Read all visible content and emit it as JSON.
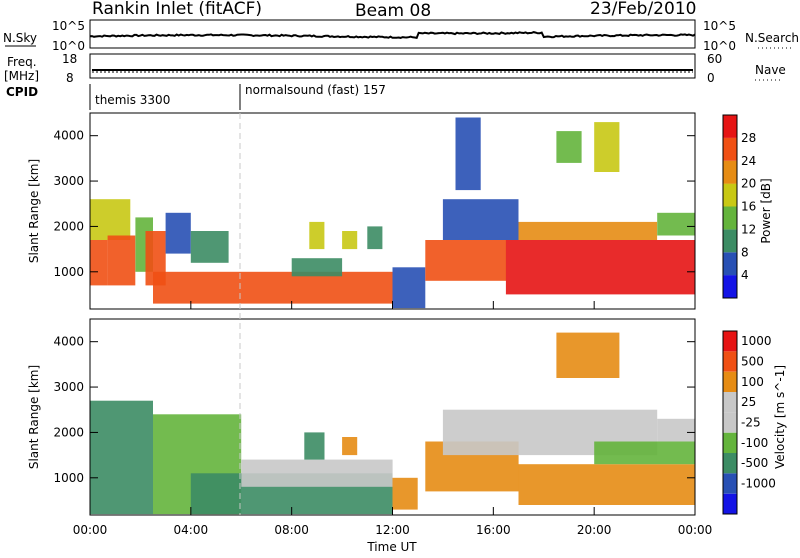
{
  "header": {
    "station": "Rankin Inlet (fitACF)",
    "beam": "Beam 08",
    "date": "23/Feb/2010"
  },
  "timeline": {
    "nsky_label": "N.Sky",
    "nsky_ticks": [
      "10^5",
      "10^0"
    ],
    "nsearch_label": "N.Search",
    "nsearch_ticks": [
      "10^5",
      "10^0"
    ],
    "freq_label": "Freq.",
    "freq_unit": "[MHz]",
    "freq_ticks": [
      "18",
      "8"
    ],
    "nave_label": "Nave",
    "nave_ticks": [
      "60",
      "0"
    ],
    "cpid_label": "CPID",
    "modes": [
      {
        "start": 0,
        "end": 6,
        "text": "themis 3300"
      },
      {
        "start": 6,
        "end": 24,
        "text": "normalsound (fast) 157"
      }
    ]
  },
  "colors": {
    "power": [
      "#1414e6",
      "#2850b4",
      "#3c8c64",
      "#64b43c",
      "#c8c814",
      "#e68c14",
      "#f05014",
      "#e61414"
    ],
    "velocity": [
      "#e61414",
      "#f05014",
      "#e68c14",
      "#c8c8c8",
      "#c8c8c8",
      "#64b43c",
      "#3c8c64",
      "#2850b4",
      "#1414e6"
    ]
  },
  "chart_data": [
    {
      "type": "heatmap",
      "name_key": "power",
      "xlabel": "",
      "ylabel": "Slant Range [km]",
      "xlim": [
        0,
        24
      ],
      "ylim": [
        180,
        4500
      ],
      "y_ticks": [
        "1000",
        "2000",
        "3000",
        "4000"
      ],
      "colorbar_label": "Power [dB]",
      "colorbar_ticks": [
        "4",
        "8",
        "12",
        "16",
        "20",
        "24",
        "28"
      ],
      "colorbar_range": [
        0,
        30
      ],
      "regions": [
        {
          "t0": 0.0,
          "t1": 0.7,
          "r0": 700,
          "r1": 1700,
          "level": 6
        },
        {
          "t0": 0.0,
          "t1": 1.6,
          "r0": 1700,
          "r1": 2600,
          "level": 4
        },
        {
          "t0": 0.7,
          "t1": 1.8,
          "r0": 700,
          "r1": 1800,
          "level": 6
        },
        {
          "t0": 1.8,
          "t1": 2.5,
          "r0": 1000,
          "r1": 2200,
          "level": 3
        },
        {
          "t0": 2.2,
          "t1": 3.0,
          "r0": 700,
          "r1": 1900,
          "level": 6
        },
        {
          "t0": 3.0,
          "t1": 4.0,
          "r0": 1400,
          "r1": 2300,
          "level": 1
        },
        {
          "t0": 4.0,
          "t1": 5.5,
          "r0": 1200,
          "r1": 1900,
          "level": 2
        },
        {
          "t0": 2.5,
          "t1": 12.0,
          "r0": 300,
          "r1": 1000,
          "level": 6
        },
        {
          "t0": 8.0,
          "t1": 10.0,
          "r0": 900,
          "r1": 1300,
          "level": 2
        },
        {
          "t0": 8.7,
          "t1": 9.3,
          "r0": 1500,
          "r1": 2100,
          "level": 4
        },
        {
          "t0": 10.0,
          "t1": 10.6,
          "r0": 1500,
          "r1": 1900,
          "level": 4
        },
        {
          "t0": 11.0,
          "t1": 11.6,
          "r0": 1500,
          "r1": 2000,
          "level": 2
        },
        {
          "t0": 12.0,
          "t1": 13.3,
          "r0": 200,
          "r1": 1100,
          "level": 1
        },
        {
          "t0": 13.3,
          "t1": 16.5,
          "r0": 800,
          "r1": 1700,
          "level": 6
        },
        {
          "t0": 14.0,
          "t1": 17.0,
          "r0": 1700,
          "r1": 2600,
          "level": 1
        },
        {
          "t0": 16.5,
          "t1": 24.0,
          "r0": 500,
          "r1": 1700,
          "level": 7
        },
        {
          "t0": 17.0,
          "t1": 22.5,
          "r0": 1700,
          "r1": 2100,
          "level": 5
        },
        {
          "t0": 22.5,
          "t1": 24.0,
          "r0": 1800,
          "r1": 2300,
          "level": 3
        },
        {
          "t0": 18.5,
          "t1": 19.5,
          "r0": 3400,
          "r1": 4100,
          "level": 3
        },
        {
          "t0": 20.0,
          "t1": 21.0,
          "r0": 3200,
          "r1": 4300,
          "level": 4
        },
        {
          "t0": 14.5,
          "t1": 15.5,
          "r0": 2800,
          "r1": 4400,
          "level": 1
        }
      ]
    },
    {
      "type": "heatmap",
      "name_key": "velocity",
      "xlabel": "Time UT",
      "ylabel": "Slant Range [km]",
      "xlim": [
        0,
        24
      ],
      "ylim": [
        180,
        4500
      ],
      "x_ticks": [
        "00:00",
        "04:00",
        "08:00",
        "12:00",
        "16:00",
        "20:00",
        "00:00"
      ],
      "y_ticks": [
        "1000",
        "2000",
        "3000",
        "4000"
      ],
      "colorbar_label": "Velocity [m s^-1]",
      "colorbar_ticks": [
        "1000",
        "500",
        "100",
        "25",
        "-25",
        "-100",
        "-500",
        "-1000"
      ],
      "regions": [
        {
          "t0": 0.0,
          "t1": 2.5,
          "r0": 200,
          "r1": 2700,
          "level": 6
        },
        {
          "t0": 2.5,
          "t1": 6.0,
          "r0": 200,
          "r1": 2400,
          "level": 5
        },
        {
          "t0": 4.0,
          "t1": 12.0,
          "r0": 200,
          "r1": 1100,
          "level": 6
        },
        {
          "t0": 6.0,
          "t1": 12.0,
          "r0": 800,
          "r1": 1400,
          "level": 4
        },
        {
          "t0": 8.5,
          "t1": 9.3,
          "r0": 1400,
          "r1": 2000,
          "level": 6
        },
        {
          "t0": 10.0,
          "t1": 10.6,
          "r0": 1500,
          "r1": 1900,
          "level": 2
        },
        {
          "t0": 12.0,
          "t1": 13.0,
          "r0": 300,
          "r1": 1000,
          "level": 2
        },
        {
          "t0": 13.3,
          "t1": 17.0,
          "r0": 700,
          "r1": 1800,
          "level": 2
        },
        {
          "t0": 14.0,
          "t1": 22.5,
          "r0": 1500,
          "r1": 2500,
          "level": 4
        },
        {
          "t0": 17.0,
          "t1": 24.0,
          "r0": 400,
          "r1": 1300,
          "level": 2
        },
        {
          "t0": 20.0,
          "t1": 24.0,
          "r0": 1300,
          "r1": 1800,
          "level": 5
        },
        {
          "t0": 22.5,
          "t1": 24.0,
          "r0": 1800,
          "r1": 2300,
          "level": 4
        },
        {
          "t0": 18.5,
          "t1": 21.0,
          "r0": 3200,
          "r1": 4200,
          "level": 2
        }
      ]
    }
  ]
}
